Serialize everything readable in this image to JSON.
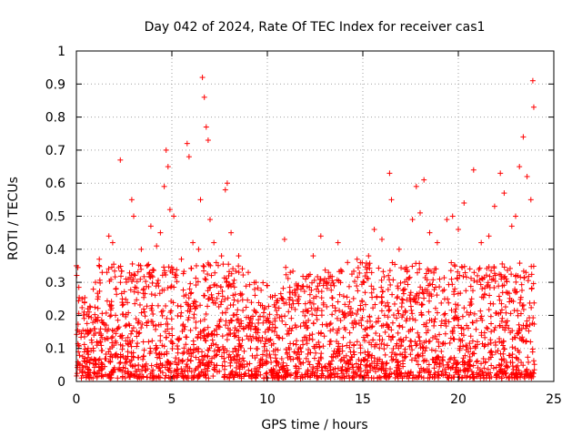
{
  "chart_data": {
    "type": "scatter",
    "title": "Day 042 of 2024, Rate Of TEC Index for receiver cas1",
    "xlabel": "GPS time / hours",
    "ylabel": "ROTI / TECUs",
    "xlim": [
      0,
      25
    ],
    "ylim": [
      0,
      1
    ],
    "xticks": [
      "0",
      "5",
      "10",
      "15",
      "20",
      "25"
    ],
    "xtick_values": [
      0,
      5,
      10,
      15,
      20,
      25
    ],
    "yticks": [
      "0",
      "0.1",
      "0.2",
      "0.3",
      "0.4",
      "0.5",
      "0.6",
      "0.7",
      "0.8",
      "0.9",
      "1"
    ],
    "ytick_values": [
      0,
      0.1,
      0.2,
      0.3,
      0.4,
      0.5,
      0.6,
      0.7,
      0.8,
      0.9,
      1
    ],
    "grid": true,
    "marker": "plus",
    "color": "#ff0000",
    "series": [
      {
        "name": "ROTI",
        "points": [
          [
            0.0,
            0.35
          ],
          [
            0.3,
            0.25
          ],
          [
            0.6,
            0.22
          ],
          [
            1.0,
            0.3
          ],
          [
            1.2,
            0.37
          ],
          [
            1.6,
            0.33
          ],
          [
            1.7,
            0.44
          ],
          [
            1.9,
            0.42
          ],
          [
            2.3,
            0.67
          ],
          [
            2.6,
            0.31
          ],
          [
            2.9,
            0.55
          ],
          [
            3.0,
            0.5
          ],
          [
            3.4,
            0.4
          ],
          [
            3.7,
            0.35
          ],
          [
            3.9,
            0.47
          ],
          [
            4.2,
            0.41
          ],
          [
            4.4,
            0.45
          ],
          [
            4.6,
            0.59
          ],
          [
            4.7,
            0.7
          ],
          [
            4.8,
            0.65
          ],
          [
            4.9,
            0.52
          ],
          [
            5.1,
            0.5
          ],
          [
            5.5,
            0.37
          ],
          [
            5.8,
            0.72
          ],
          [
            5.9,
            0.68
          ],
          [
            6.1,
            0.42
          ],
          [
            6.4,
            0.4
          ],
          [
            6.5,
            0.55
          ],
          [
            6.6,
            0.92
          ],
          [
            6.7,
            0.86
          ],
          [
            6.8,
            0.77
          ],
          [
            6.9,
            0.73
          ],
          [
            7.0,
            0.49
          ],
          [
            7.2,
            0.42
          ],
          [
            7.6,
            0.38
          ],
          [
            7.8,
            0.58
          ],
          [
            7.9,
            0.6
          ],
          [
            8.1,
            0.45
          ],
          [
            8.5,
            0.38
          ],
          [
            9.0,
            0.33
          ],
          [
            9.4,
            0.3
          ],
          [
            10.0,
            0.29
          ],
          [
            10.4,
            0.26
          ],
          [
            10.9,
            0.43
          ],
          [
            11.2,
            0.33
          ],
          [
            11.6,
            0.29
          ],
          [
            12.0,
            0.31
          ],
          [
            12.4,
            0.38
          ],
          [
            12.8,
            0.44
          ],
          [
            13.2,
            0.33
          ],
          [
            13.7,
            0.42
          ],
          [
            14.2,
            0.36
          ],
          [
            14.7,
            0.37
          ],
          [
            15.3,
            0.38
          ],
          [
            15.6,
            0.46
          ],
          [
            16.0,
            0.43
          ],
          [
            16.4,
            0.63
          ],
          [
            16.5,
            0.55
          ],
          [
            16.9,
            0.4
          ],
          [
            17.2,
            0.34
          ],
          [
            17.6,
            0.49
          ],
          [
            17.8,
            0.59
          ],
          [
            18.0,
            0.51
          ],
          [
            18.2,
            0.61
          ],
          [
            18.5,
            0.45
          ],
          [
            18.9,
            0.42
          ],
          [
            19.4,
            0.49
          ],
          [
            19.7,
            0.5
          ],
          [
            20.0,
            0.46
          ],
          [
            20.3,
            0.54
          ],
          [
            20.8,
            0.64
          ],
          [
            21.2,
            0.42
          ],
          [
            21.6,
            0.44
          ],
          [
            21.9,
            0.53
          ],
          [
            22.2,
            0.63
          ],
          [
            22.4,
            0.57
          ],
          [
            22.8,
            0.47
          ],
          [
            23.0,
            0.5
          ],
          [
            23.2,
            0.65
          ],
          [
            23.4,
            0.74
          ],
          [
            23.6,
            0.62
          ],
          [
            23.8,
            0.55
          ],
          [
            23.9,
            0.91
          ],
          [
            23.95,
            0.83
          ]
        ]
      }
    ]
  }
}
